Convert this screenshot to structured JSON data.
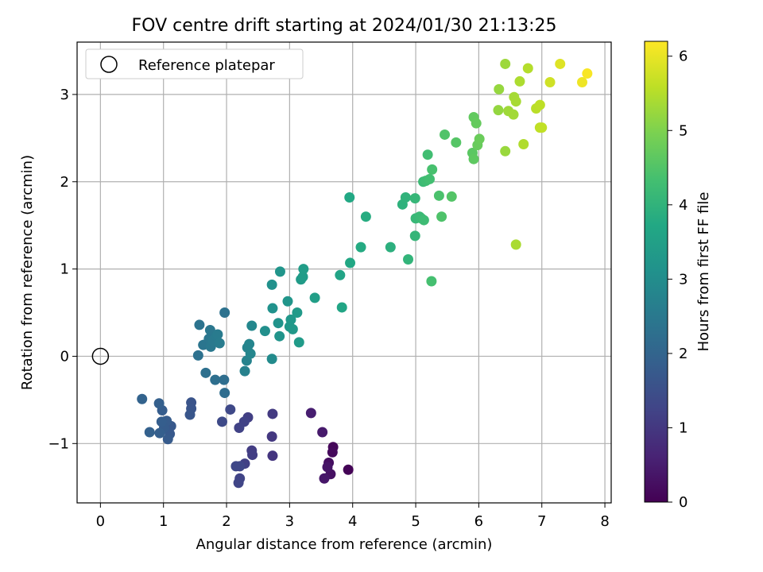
{
  "chart_data": {
    "type": "scatter",
    "title": "FOV centre drift starting at 2024/01/30 21:13:25",
    "xlabel": "Angular distance from reference (arcmin)",
    "ylabel": "Rotation from reference (arcmin)",
    "xlim": [
      -0.37,
      8.1
    ],
    "ylim": [
      -1.68,
      3.6
    ],
    "xticks": [
      0,
      1,
      2,
      3,
      4,
      5,
      6,
      7,
      8
    ],
    "yticks": [
      -1,
      0,
      1,
      2,
      3
    ],
    "grid": true,
    "legend": {
      "placement": "top-left",
      "entries": [
        "Reference platepar"
      ]
    },
    "reference_point": {
      "x": 0,
      "y": 0,
      "label": "Reference platepar"
    },
    "colorbar": {
      "label": "Hours from first FF file",
      "colormap": "viridis",
      "range": [
        0,
        6.2
      ],
      "ticks": [
        0,
        1,
        2,
        3,
        4,
        5,
        6
      ]
    },
    "points": [
      [
        3.93,
        -1.3,
        0.03
      ],
      [
        3.69,
        -1.04,
        0.1
      ],
      [
        3.68,
        -1.1,
        0.15
      ],
      [
        3.62,
        -1.22,
        0.22
      ],
      [
        3.65,
        -1.35,
        0.28
      ],
      [
        3.6,
        -1.27,
        0.33
      ],
      [
        3.55,
        -1.4,
        0.38
      ],
      [
        3.52,
        -0.87,
        0.45
      ],
      [
        3.34,
        -0.65,
        0.52
      ],
      [
        2.73,
        -1.14,
        0.95
      ],
      [
        2.72,
        -0.92,
        1.0
      ],
      [
        2.73,
        -0.66,
        1.05
      ],
      [
        2.4,
        -1.08,
        1.1
      ],
      [
        2.41,
        -1.13,
        1.12
      ],
      [
        2.34,
        -0.7,
        1.15
      ],
      [
        2.29,
        -1.23,
        1.18
      ],
      [
        2.28,
        -0.75,
        1.2
      ],
      [
        2.2,
        -0.82,
        1.22
      ],
      [
        2.21,
        -1.4,
        1.25
      ],
      [
        2.19,
        -1.45,
        1.27
      ],
      [
        2.21,
        -1.26,
        1.3
      ],
      [
        2.15,
        -1.26,
        1.32
      ],
      [
        2.06,
        -0.61,
        1.35
      ],
      [
        1.93,
        -0.75,
        1.38
      ],
      [
        1.44,
        -0.53,
        1.6
      ],
      [
        1.44,
        -0.6,
        1.62
      ],
      [
        1.42,
        -0.67,
        1.65
      ],
      [
        1.12,
        -0.8,
        1.7
      ],
      [
        1.1,
        -0.89,
        1.73
      ],
      [
        1.07,
        -0.95,
        1.76
      ],
      [
        1.05,
        -0.74,
        1.78
      ],
      [
        1.01,
        -0.82,
        1.8
      ],
      [
        0.98,
        -0.62,
        1.82
      ],
      [
        0.97,
        -0.75,
        1.84
      ],
      [
        0.94,
        -0.88,
        1.86
      ],
      [
        0.93,
        -0.54,
        1.88
      ],
      [
        0.78,
        -0.87,
        1.92
      ],
      [
        0.66,
        -0.49,
        1.95
      ],
      [
        1.97,
        -0.42,
        2.2
      ],
      [
        1.96,
        -0.27,
        2.22
      ],
      [
        1.82,
        -0.27,
        2.25
      ],
      [
        1.67,
        -0.19,
        2.28
      ],
      [
        1.55,
        0.01,
        2.3
      ],
      [
        1.97,
        0.5,
        2.33
      ],
      [
        1.57,
        0.36,
        2.36
      ],
      [
        1.63,
        0.13,
        2.4
      ],
      [
        1.72,
        0.2,
        2.42
      ],
      [
        1.74,
        0.3,
        2.45
      ],
      [
        1.75,
        0.11,
        2.48
      ],
      [
        1.78,
        0.18,
        2.5
      ],
      [
        1.84,
        0.23,
        2.52
      ],
      [
        1.86,
        0.25,
        2.55
      ],
      [
        1.89,
        0.15,
        2.58
      ],
      [
        2.29,
        -0.17,
        2.7
      ],
      [
        2.32,
        -0.05,
        2.75
      ],
      [
        2.33,
        0.1,
        2.78
      ],
      [
        2.36,
        0.14,
        2.8
      ],
      [
        2.38,
        0.03,
        2.83
      ],
      [
        2.4,
        0.35,
        2.86
      ],
      [
        2.72,
        -0.03,
        2.95
      ],
      [
        2.61,
        0.29,
        3.05
      ],
      [
        2.72,
        0.82,
        3.1
      ],
      [
        2.73,
        0.55,
        3.12
      ],
      [
        2.82,
        0.38,
        3.15
      ],
      [
        2.84,
        0.23,
        3.18
      ],
      [
        2.85,
        0.97,
        3.2
      ],
      [
        2.97,
        0.63,
        3.22
      ],
      [
        3.0,
        0.34,
        3.25
      ],
      [
        3.02,
        0.42,
        3.28
      ],
      [
        3.05,
        0.31,
        3.3
      ],
      [
        3.12,
        0.5,
        3.33
      ],
      [
        3.15,
        0.16,
        3.36
      ],
      [
        3.18,
        0.88,
        3.38
      ],
      [
        3.21,
        0.91,
        3.4
      ],
      [
        3.22,
        1.0,
        3.42
      ],
      [
        3.4,
        0.67,
        3.45
      ],
      [
        3.8,
        0.93,
        3.6
      ],
      [
        3.83,
        0.56,
        3.65
      ],
      [
        3.96,
        1.07,
        3.7
      ],
      [
        3.95,
        1.82,
        3.72
      ],
      [
        4.13,
        1.25,
        3.78
      ],
      [
        4.21,
        1.6,
        3.82
      ],
      [
        4.6,
        1.25,
        3.92
      ],
      [
        4.79,
        1.74,
        3.96
      ],
      [
        4.84,
        1.82,
        4.0
      ],
      [
        4.88,
        1.11,
        4.03
      ],
      [
        4.99,
        1.38,
        4.06
      ],
      [
        4.99,
        1.81,
        4.1
      ],
      [
        5.0,
        1.58,
        4.13
      ],
      [
        5.06,
        1.6,
        4.16
      ],
      [
        5.09,
        1.58,
        4.18
      ],
      [
        5.12,
        2.0,
        4.2
      ],
      [
        5.13,
        1.56,
        4.23
      ],
      [
        5.16,
        2.01,
        4.26
      ],
      [
        5.19,
        2.31,
        4.28
      ],
      [
        5.22,
        2.03,
        4.32
      ],
      [
        5.25,
        0.86,
        4.35
      ],
      [
        5.26,
        2.14,
        4.38
      ],
      [
        5.37,
        1.84,
        4.42
      ],
      [
        5.41,
        1.6,
        4.45
      ],
      [
        5.46,
        2.54,
        4.48
      ],
      [
        5.57,
        1.83,
        4.52
      ],
      [
        5.64,
        2.45,
        4.55
      ],
      [
        5.9,
        2.33,
        4.6
      ],
      [
        5.92,
        2.26,
        4.64
      ],
      [
        5.92,
        2.74,
        4.68
      ],
      [
        5.96,
        2.67,
        4.72
      ],
      [
        5.98,
        2.42,
        4.75
      ],
      [
        6.01,
        2.49,
        4.78
      ],
      [
        6.31,
        2.82,
        5.2
      ],
      [
        6.32,
        3.06,
        5.22
      ],
      [
        6.42,
        2.35,
        5.25
      ],
      [
        6.42,
        3.35,
        5.28
      ],
      [
        6.47,
        2.81,
        5.3
      ],
      [
        6.55,
        2.77,
        5.33
      ],
      [
        6.56,
        2.97,
        5.36
      ],
      [
        6.59,
        2.92,
        5.38
      ],
      [
        6.59,
        1.28,
        5.4
      ],
      [
        6.65,
        3.15,
        5.43
      ],
      [
        6.71,
        2.43,
        5.46
      ],
      [
        6.78,
        3.3,
        5.5
      ],
      [
        6.91,
        2.84,
        5.55
      ],
      [
        6.97,
        2.88,
        5.58
      ],
      [
        6.97,
        2.62,
        5.6
      ],
      [
        7.0,
        2.62,
        5.62
      ],
      [
        7.13,
        3.14,
        5.75
      ],
      [
        7.29,
        3.35,
        5.9
      ],
      [
        7.64,
        3.14,
        6.05
      ],
      [
        7.72,
        3.24,
        6.15
      ]
    ]
  }
}
